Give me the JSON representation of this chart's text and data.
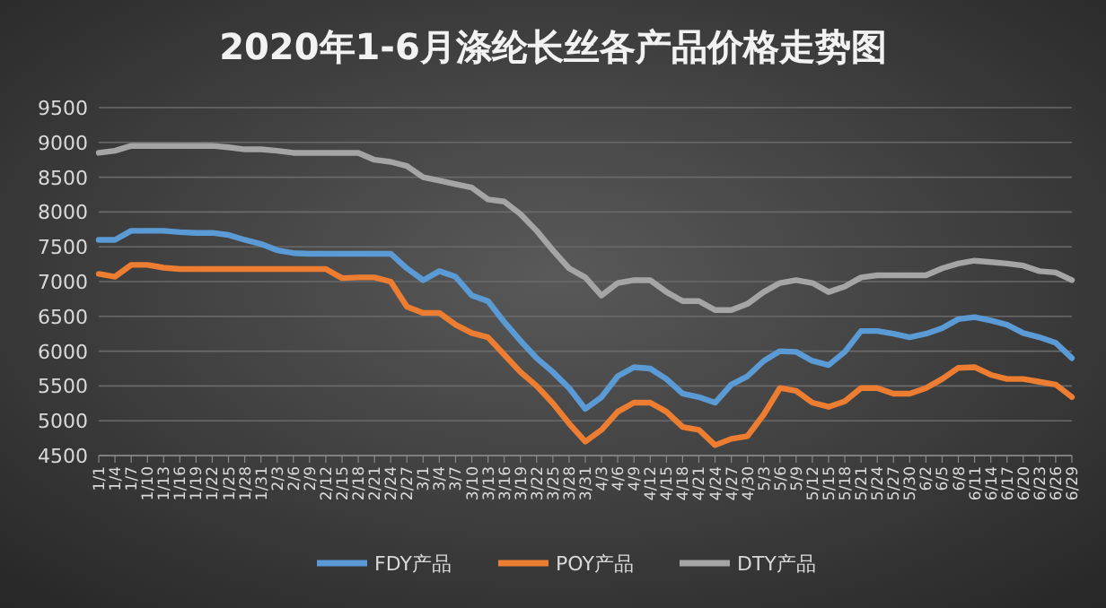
{
  "chart_data": {
    "type": "line",
    "title": "2020年1-6月涤纶长丝各产品价格走势图",
    "categories": [
      "1/1",
      "1/4",
      "1/7",
      "1/10",
      "1/13",
      "1/16",
      "1/19",
      "1/22",
      "1/25",
      "1/28",
      "1/31",
      "2/3",
      "2/6",
      "2/9",
      "2/12",
      "2/15",
      "2/18",
      "2/21",
      "2/24",
      "2/27",
      "3/1",
      "3/4",
      "3/7",
      "3/10",
      "3/13",
      "3/16",
      "3/19",
      "3/22",
      "3/25",
      "3/28",
      "3/31",
      "4/3",
      "4/6",
      "4/9",
      "4/12",
      "4/15",
      "4/18",
      "4/21",
      "4/24",
      "4/27",
      "4/30",
      "5/3",
      "5/6",
      "5/9",
      "5/12",
      "5/15",
      "5/18",
      "5/21",
      "5/24",
      "5/27",
      "5/30",
      "6/2",
      "6/5",
      "6/8",
      "6/11",
      "6/14",
      "6/17",
      "6/20",
      "6/23",
      "6/26",
      "6/29"
    ],
    "series": [
      {
        "name": "FDY产品",
        "color": "#5b9bd5",
        "values": [
          7600,
          7600,
          7730,
          7730,
          7730,
          7710,
          7700,
          7700,
          7670,
          7600,
          7540,
          7450,
          7410,
          7400,
          7400,
          7400,
          7400,
          7400,
          7400,
          7190,
          7020,
          7150,
          7070,
          6800,
          6720,
          6420,
          6150,
          5900,
          5700,
          5470,
          5170,
          5340,
          5640,
          5770,
          5750,
          5600,
          5390,
          5340,
          5260,
          5520,
          5640,
          5860,
          6000,
          5990,
          5860,
          5800,
          5990,
          6290,
          6290,
          6250,
          6200,
          6250,
          6330,
          6460,
          6490,
          6440,
          6380,
          6260,
          6200,
          6120,
          5900
        ]
      },
      {
        "name": "POY产品",
        "color": "#ed7d31",
        "values": [
          7110,
          7070,
          7240,
          7240,
          7200,
          7180,
          7180,
          7180,
          7180,
          7180,
          7180,
          7180,
          7180,
          7180,
          7180,
          7050,
          7060,
          7060,
          7000,
          6640,
          6550,
          6550,
          6380,
          6260,
          6200,
          5950,
          5700,
          5500,
          5250,
          4960,
          4700,
          4870,
          5130,
          5260,
          5260,
          5130,
          4910,
          4870,
          4650,
          4740,
          4780,
          5090,
          5470,
          5430,
          5260,
          5200,
          5280,
          5470,
          5470,
          5390,
          5390,
          5470,
          5600,
          5760,
          5770,
          5660,
          5600,
          5600,
          5560,
          5520,
          5340
        ]
      },
      {
        "name": "DTY产品",
        "color": "#a5a5a5",
        "values": [
          8850,
          8880,
          8950,
          8950,
          8950,
          8950,
          8950,
          8950,
          8930,
          8900,
          8900,
          8880,
          8850,
          8850,
          8850,
          8850,
          8850,
          8750,
          8720,
          8660,
          8500,
          8450,
          8400,
          8350,
          8180,
          8150,
          7970,
          7730,
          7450,
          7190,
          7060,
          6800,
          6980,
          7020,
          7020,
          6850,
          6720,
          6720,
          6590,
          6590,
          6680,
          6850,
          6980,
          7020,
          6980,
          6850,
          6930,
          7060,
          7090,
          7090,
          7090,
          7090,
          7190,
          7260,
          7300,
          7280,
          7260,
          7230,
          7150,
          7130,
          7020
        ]
      }
    ],
    "ylim": [
      4500,
      9500
    ],
    "yticks": [
      4500,
      5000,
      5500,
      6000,
      6500,
      7000,
      7500,
      8000,
      8500,
      9000,
      9500
    ],
    "grid": "y",
    "legend": "bottom",
    "marker": "none",
    "line_style": "solid"
  }
}
